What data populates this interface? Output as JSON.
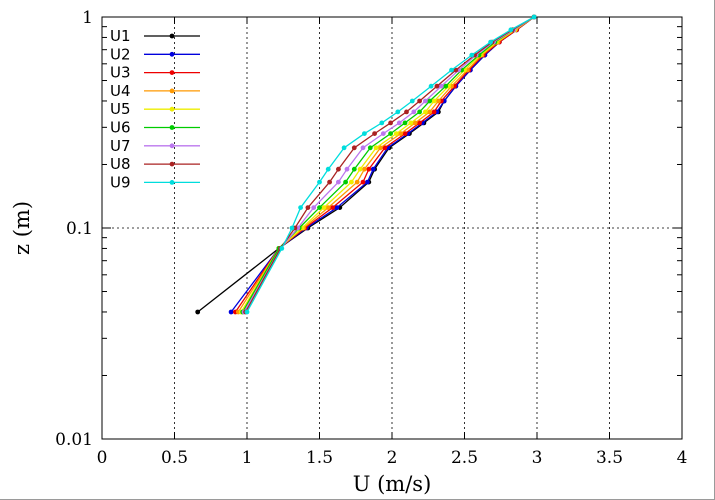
{
  "chart_data": {
    "type": "line",
    "xlabel": "U (m/s)",
    "ylabel": "z (m)",
    "xlim": [
      0,
      4
    ],
    "ylim": [
      0.01,
      1
    ],
    "yscale": "log",
    "x_ticks": [
      "0",
      "0.5",
      "1",
      "1.5",
      "2",
      "2.5",
      "3",
      "3.5",
      "4"
    ],
    "y_ticks": [
      "0.01",
      "0.1",
      "1"
    ],
    "grid": "dotted",
    "legend_position": "top-left",
    "series": [
      {
        "name": "U1",
        "color": "#000000",
        "points": [
          [
            0.66,
            0.04
          ],
          [
            1.22,
            0.08
          ],
          [
            1.42,
            0.1
          ],
          [
            1.64,
            0.125
          ],
          [
            1.84,
            0.165
          ],
          [
            1.88,
            0.19
          ],
          [
            1.98,
            0.24
          ],
          [
            2.12,
            0.28
          ],
          [
            2.22,
            0.315
          ],
          [
            2.32,
            0.355
          ],
          [
            2.36,
            0.4
          ],
          [
            2.44,
            0.47
          ],
          [
            2.54,
            0.56
          ],
          [
            2.64,
            0.66
          ],
          [
            2.74,
            0.76
          ],
          [
            2.86,
            0.87
          ],
          [
            2.98,
            1.0
          ]
        ]
      },
      {
        "name": "U2",
        "color": "#0000dd",
        "points": [
          [
            0.89,
            0.04
          ],
          [
            1.22,
            0.08
          ],
          [
            1.41,
            0.1
          ],
          [
            1.62,
            0.125
          ],
          [
            1.83,
            0.165
          ],
          [
            1.87,
            0.19
          ],
          [
            1.97,
            0.24
          ],
          [
            2.11,
            0.28
          ],
          [
            2.21,
            0.315
          ],
          [
            2.31,
            0.355
          ],
          [
            2.36,
            0.4
          ],
          [
            2.44,
            0.47
          ],
          [
            2.54,
            0.56
          ],
          [
            2.64,
            0.66
          ],
          [
            2.74,
            0.76
          ],
          [
            2.86,
            0.87
          ],
          [
            2.98,
            1.0
          ]
        ]
      },
      {
        "name": "U3",
        "color": "#ee0000",
        "points": [
          [
            0.92,
            0.04
          ],
          [
            1.22,
            0.08
          ],
          [
            1.4,
            0.1
          ],
          [
            1.59,
            0.125
          ],
          [
            1.8,
            0.165
          ],
          [
            1.84,
            0.19
          ],
          [
            1.95,
            0.24
          ],
          [
            2.09,
            0.28
          ],
          [
            2.19,
            0.315
          ],
          [
            2.29,
            0.355
          ],
          [
            2.34,
            0.4
          ],
          [
            2.43,
            0.47
          ],
          [
            2.53,
            0.56
          ],
          [
            2.63,
            0.66
          ],
          [
            2.74,
            0.76
          ],
          [
            2.86,
            0.87
          ],
          [
            2.98,
            1.0
          ]
        ]
      },
      {
        "name": "U4",
        "color": "#ff9900",
        "points": [
          [
            0.94,
            0.04
          ],
          [
            1.22,
            0.08
          ],
          [
            1.39,
            0.1
          ],
          [
            1.56,
            0.125
          ],
          [
            1.76,
            0.165
          ],
          [
            1.81,
            0.19
          ],
          [
            1.92,
            0.24
          ],
          [
            2.06,
            0.28
          ],
          [
            2.16,
            0.315
          ],
          [
            2.26,
            0.355
          ],
          [
            2.32,
            0.4
          ],
          [
            2.41,
            0.47
          ],
          [
            2.52,
            0.56
          ],
          [
            2.62,
            0.66
          ],
          [
            2.73,
            0.76
          ],
          [
            2.85,
            0.87
          ],
          [
            2.98,
            1.0
          ]
        ]
      },
      {
        "name": "U5",
        "color": "#eeee00",
        "points": [
          [
            0.96,
            0.04
          ],
          [
            1.22,
            0.08
          ],
          [
            1.38,
            0.1
          ],
          [
            1.53,
            0.125
          ],
          [
            1.72,
            0.165
          ],
          [
            1.78,
            0.19
          ],
          [
            1.89,
            0.24
          ],
          [
            2.03,
            0.28
          ],
          [
            2.13,
            0.315
          ],
          [
            2.23,
            0.355
          ],
          [
            2.29,
            0.4
          ],
          [
            2.39,
            0.47
          ],
          [
            2.5,
            0.56
          ],
          [
            2.61,
            0.66
          ],
          [
            2.72,
            0.76
          ],
          [
            2.85,
            0.87
          ],
          [
            2.98,
            1.0
          ]
        ]
      },
      {
        "name": "U6",
        "color": "#00cc00",
        "points": [
          [
            0.97,
            0.04
          ],
          [
            1.22,
            0.08
          ],
          [
            1.36,
            0.1
          ],
          [
            1.5,
            0.125
          ],
          [
            1.68,
            0.165
          ],
          [
            1.74,
            0.19
          ],
          [
            1.85,
            0.24
          ],
          [
            1.99,
            0.28
          ],
          [
            2.09,
            0.315
          ],
          [
            2.19,
            0.355
          ],
          [
            2.26,
            0.4
          ],
          [
            2.37,
            0.47
          ],
          [
            2.48,
            0.56
          ],
          [
            2.6,
            0.66
          ],
          [
            2.71,
            0.76
          ],
          [
            2.84,
            0.87
          ],
          [
            2.98,
            1.0
          ]
        ]
      },
      {
        "name": "U7",
        "color": "#bb77ee",
        "points": [
          [
            0.98,
            0.04
          ],
          [
            1.23,
            0.08
          ],
          [
            1.35,
            0.1
          ],
          [
            1.46,
            0.125
          ],
          [
            1.63,
            0.165
          ],
          [
            1.69,
            0.19
          ],
          [
            1.8,
            0.24
          ],
          [
            1.94,
            0.28
          ],
          [
            2.05,
            0.315
          ],
          [
            2.15,
            0.355
          ],
          [
            2.23,
            0.4
          ],
          [
            2.34,
            0.47
          ],
          [
            2.46,
            0.56
          ],
          [
            2.58,
            0.66
          ],
          [
            2.7,
            0.76
          ],
          [
            2.84,
            0.87
          ],
          [
            2.98,
            1.0
          ]
        ]
      },
      {
        "name": "U8",
        "color": "#aa2222",
        "points": [
          [
            0.99,
            0.04
          ],
          [
            1.23,
            0.08
          ],
          [
            1.33,
            0.1
          ],
          [
            1.42,
            0.125
          ],
          [
            1.57,
            0.165
          ],
          [
            1.63,
            0.19
          ],
          [
            1.74,
            0.24
          ],
          [
            1.88,
            0.28
          ],
          [
            1.99,
            0.315
          ],
          [
            2.1,
            0.355
          ],
          [
            2.19,
            0.4
          ],
          [
            2.31,
            0.47
          ],
          [
            2.44,
            0.56
          ],
          [
            2.57,
            0.66
          ],
          [
            2.69,
            0.76
          ],
          [
            2.83,
            0.87
          ],
          [
            2.98,
            1.0
          ]
        ]
      },
      {
        "name": "U9",
        "color": "#00dddd",
        "points": [
          [
            1.0,
            0.04
          ],
          [
            1.24,
            0.08
          ],
          [
            1.31,
            0.1
          ],
          [
            1.37,
            0.125
          ],
          [
            1.5,
            0.165
          ],
          [
            1.56,
            0.19
          ],
          [
            1.67,
            0.24
          ],
          [
            1.81,
            0.28
          ],
          [
            1.93,
            0.315
          ],
          [
            2.04,
            0.355
          ],
          [
            2.14,
            0.4
          ],
          [
            2.27,
            0.47
          ],
          [
            2.41,
            0.56
          ],
          [
            2.55,
            0.66
          ],
          [
            2.68,
            0.76
          ],
          [
            2.82,
            0.87
          ],
          [
            2.98,
            1.0
          ]
        ]
      }
    ]
  }
}
